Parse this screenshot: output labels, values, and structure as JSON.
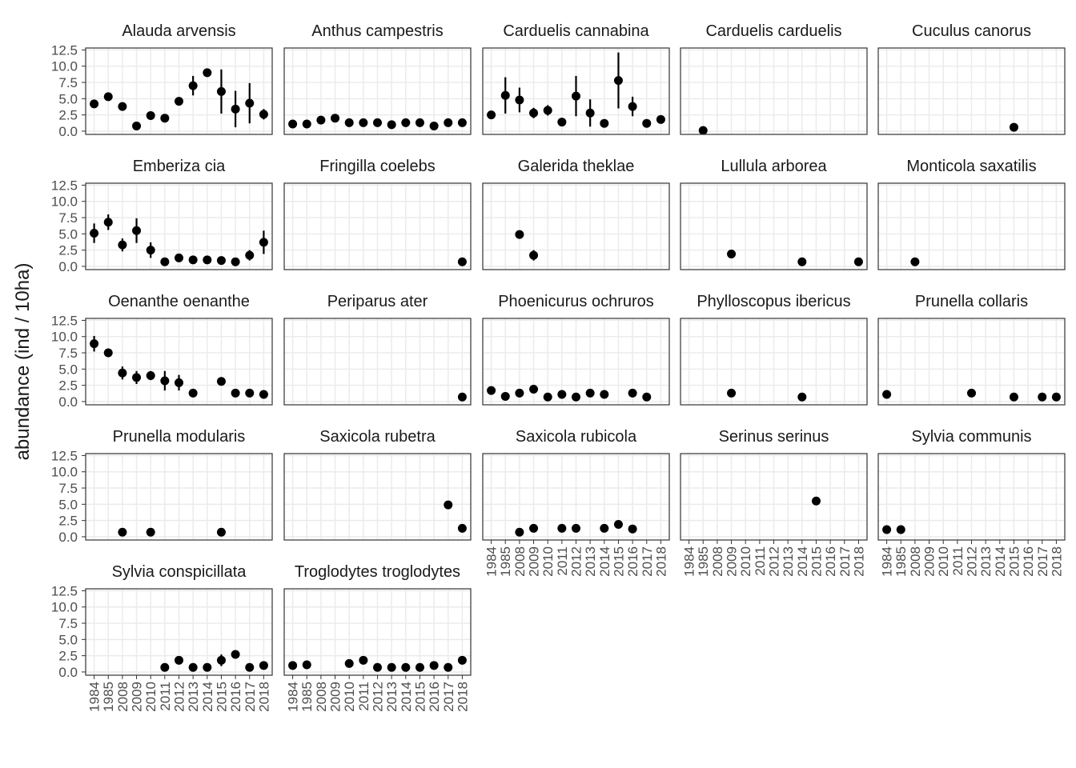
{
  "chart_data": {
    "type": "pointrange",
    "y_label": "abundance (ind / 10ha)",
    "categories": [
      "1984",
      "1985",
      "2008",
      "2009",
      "2010",
      "2011",
      "2012",
      "2013",
      "2014",
      "2015",
      "2016",
      "2017",
      "2018"
    ],
    "ylim": [
      -0.5,
      12.8
    ],
    "yticks": [
      {
        "value": 0,
        "label": "0.0"
      },
      {
        "value": 2.5,
        "label": "2.5"
      },
      {
        "value": 5,
        "label": "5.0"
      },
      {
        "value": 7.5,
        "label": "7.5"
      },
      {
        "value": 10,
        "label": "10.0"
      },
      {
        "value": 12.5,
        "label": "12.5"
      }
    ],
    "grid": true,
    "color": "#000000",
    "panels": [
      {
        "title": "Alauda arvensis",
        "values": [
          4.2,
          5.3,
          3.8,
          0.8,
          2.4,
          2.0,
          4.6,
          7.0,
          9.0,
          6.1,
          3.4,
          4.3,
          2.6
        ],
        "errors": [
          null,
          null,
          null,
          null,
          0.4,
          null,
          null,
          1.5,
          0.5,
          3.4,
          2.8,
          3.1,
          0.8
        ]
      },
      {
        "title": "Anthus campestris",
        "values": [
          1.1,
          1.1,
          1.7,
          2.0,
          1.3,
          1.3,
          1.3,
          1.0,
          1.3,
          1.3,
          0.8,
          1.3,
          1.3
        ],
        "errors": [
          null,
          null,
          0.4,
          null,
          null,
          null,
          null,
          null,
          null,
          null,
          null,
          null,
          null
        ]
      },
      {
        "title": "Carduelis cannabina",
        "values": [
          2.5,
          5.5,
          4.8,
          2.8,
          3.2,
          1.4,
          5.4,
          2.8,
          1.2,
          7.8,
          3.8,
          1.2,
          1.8
        ],
        "errors": [
          0.5,
          2.8,
          1.9,
          0.8,
          0.8,
          null,
          3.1,
          2.1,
          null,
          4.3,
          1.5,
          null,
          null
        ]
      },
      {
        "title": "Carduelis carduelis",
        "values": [
          null,
          0.1,
          null,
          null,
          null,
          null,
          null,
          null,
          null,
          null,
          null,
          null,
          null
        ],
        "errors": [
          null,
          null,
          null,
          null,
          null,
          null,
          null,
          null,
          null,
          null,
          null,
          null,
          null
        ]
      },
      {
        "title": "Cuculus canorus",
        "values": [
          null,
          null,
          null,
          null,
          null,
          null,
          null,
          null,
          null,
          0.6,
          null,
          null,
          null
        ],
        "errors": [
          null,
          null,
          null,
          null,
          null,
          null,
          null,
          null,
          null,
          null,
          null,
          null,
          null
        ]
      },
      {
        "title": "Emberiza cia",
        "values": [
          5.1,
          6.8,
          3.3,
          5.5,
          2.5,
          0.7,
          1.3,
          1.0,
          1.0,
          0.9,
          0.7,
          1.7,
          3.7
        ],
        "errors": [
          1.5,
          1.2,
          1.0,
          1.9,
          1.2,
          null,
          null,
          null,
          null,
          null,
          null,
          0.8,
          1.8
        ]
      },
      {
        "title": "Fringilla coelebs",
        "values": [
          null,
          null,
          null,
          null,
          null,
          null,
          null,
          null,
          null,
          null,
          null,
          null,
          0.7
        ],
        "errors": [
          null,
          null,
          null,
          null,
          null,
          null,
          null,
          null,
          null,
          null,
          null,
          null,
          null
        ]
      },
      {
        "title": "Galerida theklae",
        "values": [
          null,
          null,
          4.9,
          1.7,
          null,
          null,
          null,
          null,
          null,
          null,
          null,
          null,
          null
        ],
        "errors": [
          null,
          null,
          null,
          0.8,
          null,
          null,
          null,
          null,
          null,
          null,
          null,
          null,
          null
        ]
      },
      {
        "title": "Lullula arborea",
        "values": [
          null,
          null,
          null,
          1.9,
          null,
          null,
          null,
          null,
          0.7,
          null,
          null,
          null,
          0.7
        ],
        "errors": [
          null,
          null,
          null,
          null,
          null,
          null,
          null,
          null,
          null,
          null,
          null,
          null,
          null
        ]
      },
      {
        "title": "Monticola saxatilis",
        "values": [
          null,
          null,
          0.7,
          null,
          null,
          null,
          null,
          null,
          null,
          null,
          null,
          null,
          null
        ],
        "errors": [
          null,
          null,
          null,
          null,
          null,
          null,
          null,
          null,
          null,
          null,
          null,
          null,
          null
        ]
      },
      {
        "title": "Oenanthe oenanthe",
        "values": [
          8.9,
          7.5,
          4.4,
          3.7,
          4.0,
          3.2,
          2.9,
          1.3,
          null,
          3.1,
          1.3,
          1.3,
          1.1
        ],
        "errors": [
          1.2,
          null,
          1.0,
          1.0,
          0.7,
          1.5,
          1.2,
          null,
          null,
          null,
          null,
          null,
          null
        ]
      },
      {
        "title": "Periparus ater",
        "values": [
          null,
          null,
          null,
          null,
          null,
          null,
          null,
          null,
          null,
          null,
          null,
          null,
          0.7
        ],
        "errors": [
          null,
          null,
          null,
          null,
          null,
          null,
          null,
          null,
          null,
          null,
          null,
          null,
          null
        ]
      },
      {
        "title": "Phoenicurus ochruros",
        "values": [
          1.7,
          0.8,
          1.3,
          1.9,
          0.7,
          1.1,
          0.7,
          1.3,
          1.1,
          null,
          1.3,
          0.7,
          null
        ],
        "errors": [
          null,
          null,
          null,
          null,
          null,
          null,
          null,
          null,
          null,
          null,
          null,
          null,
          null
        ]
      },
      {
        "title": "Phylloscopus ibericus",
        "values": [
          null,
          null,
          null,
          1.3,
          null,
          null,
          null,
          null,
          0.7,
          null,
          null,
          null,
          null
        ],
        "errors": [
          null,
          null,
          null,
          null,
          null,
          null,
          null,
          null,
          null,
          null,
          null,
          null,
          null
        ]
      },
      {
        "title": "Prunella collaris",
        "values": [
          1.1,
          null,
          null,
          null,
          null,
          null,
          1.3,
          null,
          null,
          0.7,
          null,
          0.7,
          0.7
        ],
        "errors": [
          null,
          null,
          null,
          null,
          null,
          null,
          null,
          null,
          null,
          null,
          null,
          null,
          null
        ]
      },
      {
        "title": "Prunella modularis",
        "values": [
          null,
          null,
          0.7,
          null,
          0.7,
          null,
          null,
          null,
          null,
          0.7,
          null,
          null,
          null
        ],
        "errors": [
          null,
          null,
          null,
          null,
          null,
          null,
          null,
          null,
          null,
          null,
          null,
          null,
          null
        ]
      },
      {
        "title": "Saxicola rubetra",
        "values": [
          null,
          null,
          null,
          null,
          null,
          null,
          null,
          null,
          null,
          null,
          null,
          4.9,
          1.3
        ],
        "errors": [
          null,
          null,
          null,
          null,
          null,
          null,
          null,
          null,
          null,
          null,
          null,
          null,
          null
        ]
      },
      {
        "title": "Saxicola rubicola",
        "values": [
          null,
          null,
          0.7,
          1.3,
          null,
          1.3,
          1.3,
          null,
          1.3,
          1.9,
          1.2,
          null,
          null
        ],
        "errors": [
          null,
          null,
          null,
          null,
          null,
          null,
          null,
          null,
          null,
          null,
          null,
          null,
          null
        ]
      },
      {
        "title": "Serinus serinus",
        "values": [
          null,
          null,
          null,
          null,
          null,
          null,
          null,
          null,
          null,
          5.5,
          null,
          null,
          null
        ],
        "errors": [
          null,
          null,
          null,
          null,
          null,
          null,
          null,
          null,
          null,
          null,
          null,
          null,
          null
        ]
      },
      {
        "title": "Sylvia communis",
        "values": [
          1.1,
          1.1,
          null,
          null,
          null,
          null,
          null,
          null,
          null,
          null,
          null,
          null,
          null
        ],
        "errors": [
          null,
          null,
          null,
          null,
          null,
          null,
          null,
          null,
          null,
          null,
          null,
          null,
          null
        ]
      },
      {
        "title": "Sylvia conspicillata",
        "values": [
          null,
          null,
          null,
          null,
          null,
          0.7,
          1.8,
          0.7,
          0.7,
          1.8,
          2.7,
          0.7,
          1.0
        ],
        "errors": [
          null,
          null,
          null,
          null,
          null,
          null,
          null,
          null,
          null,
          0.9,
          null,
          null,
          null
        ]
      },
      {
        "title": "Troglodytes troglodytes",
        "values": [
          1.0,
          1.1,
          null,
          null,
          1.3,
          1.8,
          0.7,
          0.7,
          0.7,
          0.7,
          1.0,
          0.7,
          1.8
        ],
        "errors": [
          null,
          null,
          null,
          null,
          null,
          null,
          null,
          null,
          null,
          null,
          null,
          null,
          null
        ]
      }
    ]
  }
}
